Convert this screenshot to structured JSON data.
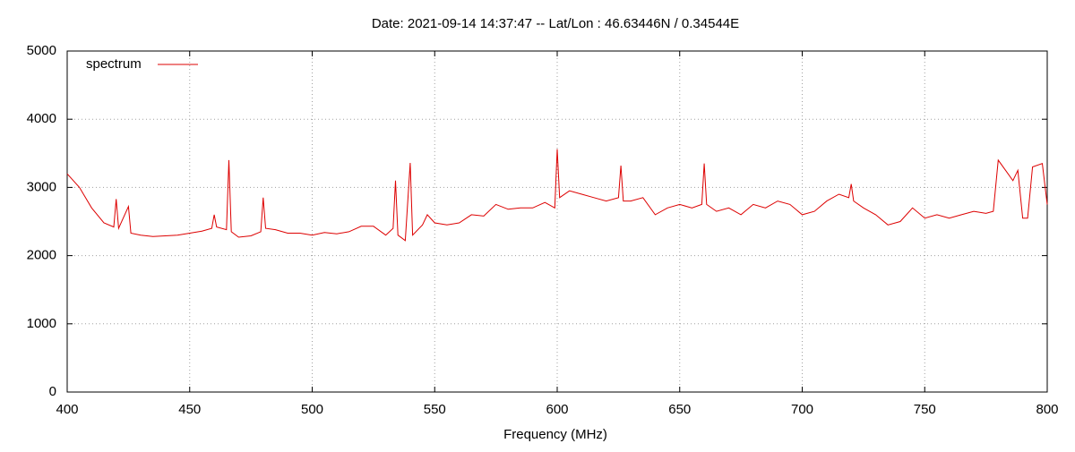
{
  "chart_data": {
    "type": "line",
    "title": "Date: 2021-09-14 14:37:47  --  Lat/Lon : 46.63446N / 0.34544E",
    "x_label": "Frequency (MHz)",
    "x": [
      400,
      405,
      410,
      415,
      419,
      420,
      421,
      425,
      426,
      430,
      435,
      440,
      445,
      450,
      455,
      459,
      460,
      461,
      465,
      466,
      467,
      470,
      475,
      479,
      480,
      481,
      485,
      490,
      495,
      500,
      505,
      510,
      515,
      520,
      525,
      530,
      533,
      534,
      535,
      538,
      540,
      541,
      545,
      547,
      550,
      555,
      560,
      565,
      570,
      575,
      580,
      585,
      590,
      595,
      599,
      600,
      601,
      605,
      610,
      615,
      620,
      625,
      626,
      627,
      630,
      635,
      640,
      645,
      650,
      655,
      659,
      660,
      661,
      665,
      670,
      675,
      680,
      685,
      690,
      695,
      700,
      705,
      710,
      715,
      719,
      720,
      721,
      725,
      730,
      735,
      740,
      745,
      750,
      755,
      760,
      765,
      770,
      775,
      778,
      780,
      783,
      786,
      788,
      790,
      792,
      794,
      798,
      800
    ],
    "series": [
      {
        "name": "spectrum",
        "color": "#dd0000",
        "values": [
          3200,
          3000,
          2700,
          2480,
          2420,
          2830,
          2400,
          2720,
          2330,
          2300,
          2280,
          2290,
          2300,
          2330,
          2360,
          2400,
          2600,
          2420,
          2380,
          3400,
          2350,
          2270,
          2290,
          2350,
          2850,
          2400,
          2380,
          2330,
          2330,
          2300,
          2340,
          2320,
          2350,
          2430,
          2430,
          2300,
          2400,
          3100,
          2300,
          2220,
          3360,
          2300,
          2450,
          2600,
          2480,
          2450,
          2480,
          2600,
          2580,
          2750,
          2680,
          2700,
          2700,
          2780,
          2700,
          3560,
          2850,
          2950,
          2900,
          2850,
          2800,
          2850,
          3320,
          2800,
          2800,
          2850,
          2600,
          2700,
          2750,
          2700,
          2750,
          3350,
          2750,
          2650,
          2700,
          2600,
          2750,
          2700,
          2800,
          2750,
          2600,
          2650,
          2800,
          2900,
          2850,
          3050,
          2800,
          2700,
          2600,
          2450,
          2500,
          2700,
          2550,
          2600,
          2550,
          2600,
          2650,
          2620,
          2650,
          3400,
          3250,
          3100,
          3250,
          2550,
          2550,
          3300,
          3350,
          2750
        ]
      }
    ],
    "xlim": [
      400,
      800
    ],
    "xticks": [
      400,
      450,
      500,
      550,
      600,
      650,
      700,
      750,
      800
    ],
    "ylim": [
      0,
      5000
    ],
    "yticks": [
      0,
      1000,
      2000,
      3000,
      4000,
      5000
    ],
    "grid": true,
    "legend_position": "top-left"
  }
}
